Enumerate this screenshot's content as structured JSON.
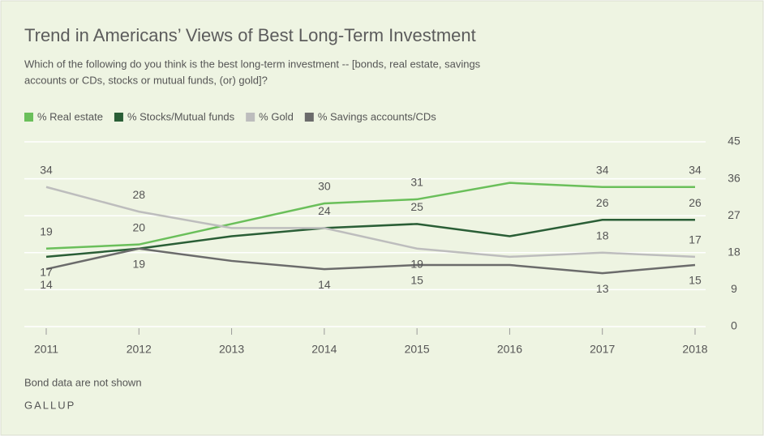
{
  "chart_data": {
    "type": "line",
    "title": "Trend in Americans’ Views of Best Long-Term Investment",
    "subtitle": [
      "Which of the following do you think is the best long-term investment -- [bonds, real estate, savings",
      "accounts or CDs, stocks or mutual funds, (or) gold]?"
    ],
    "categories": [
      "2011",
      "2012",
      "2013",
      "2014",
      "2015",
      "2016",
      "2017",
      "2018"
    ],
    "series": [
      {
        "name": "% Real estate",
        "color": "#6abf5a",
        "values": [
          19,
          20,
          25,
          30,
          31,
          35,
          34,
          34
        ],
        "value_labels": [
          "19",
          "20",
          null,
          "30",
          "31",
          null,
          "34",
          "34"
        ]
      },
      {
        "name": "% Stocks/Mutual funds",
        "color": "#2a5e36",
        "values": [
          17,
          19,
          22,
          24,
          25,
          22,
          26,
          26
        ],
        "value_labels": [
          "17",
          null,
          null,
          "24",
          "25",
          null,
          "26",
          "26"
        ]
      },
      {
        "name": "% Gold",
        "color": "#bdbdbd",
        "values": [
          34,
          28,
          24,
          24,
          19,
          17,
          18,
          17
        ],
        "value_labels": [
          "34",
          "28",
          null,
          null,
          "19",
          null,
          "18",
          "17"
        ]
      },
      {
        "name": "% Savings accounts/CDs",
        "color": "#6b6b6b",
        "values": [
          14,
          19,
          16,
          14,
          15,
          15,
          13,
          15
        ],
        "value_labels": [
          "14",
          "19",
          null,
          "14",
          "15",
          null,
          "13",
          "15"
        ]
      }
    ],
    "ylim": [
      0,
      45
    ],
    "yticks": [
      0,
      9,
      18,
      27,
      36,
      45
    ],
    "grid": true,
    "notes": [
      "Bond data are not shown",
      "GALLUP"
    ]
  }
}
